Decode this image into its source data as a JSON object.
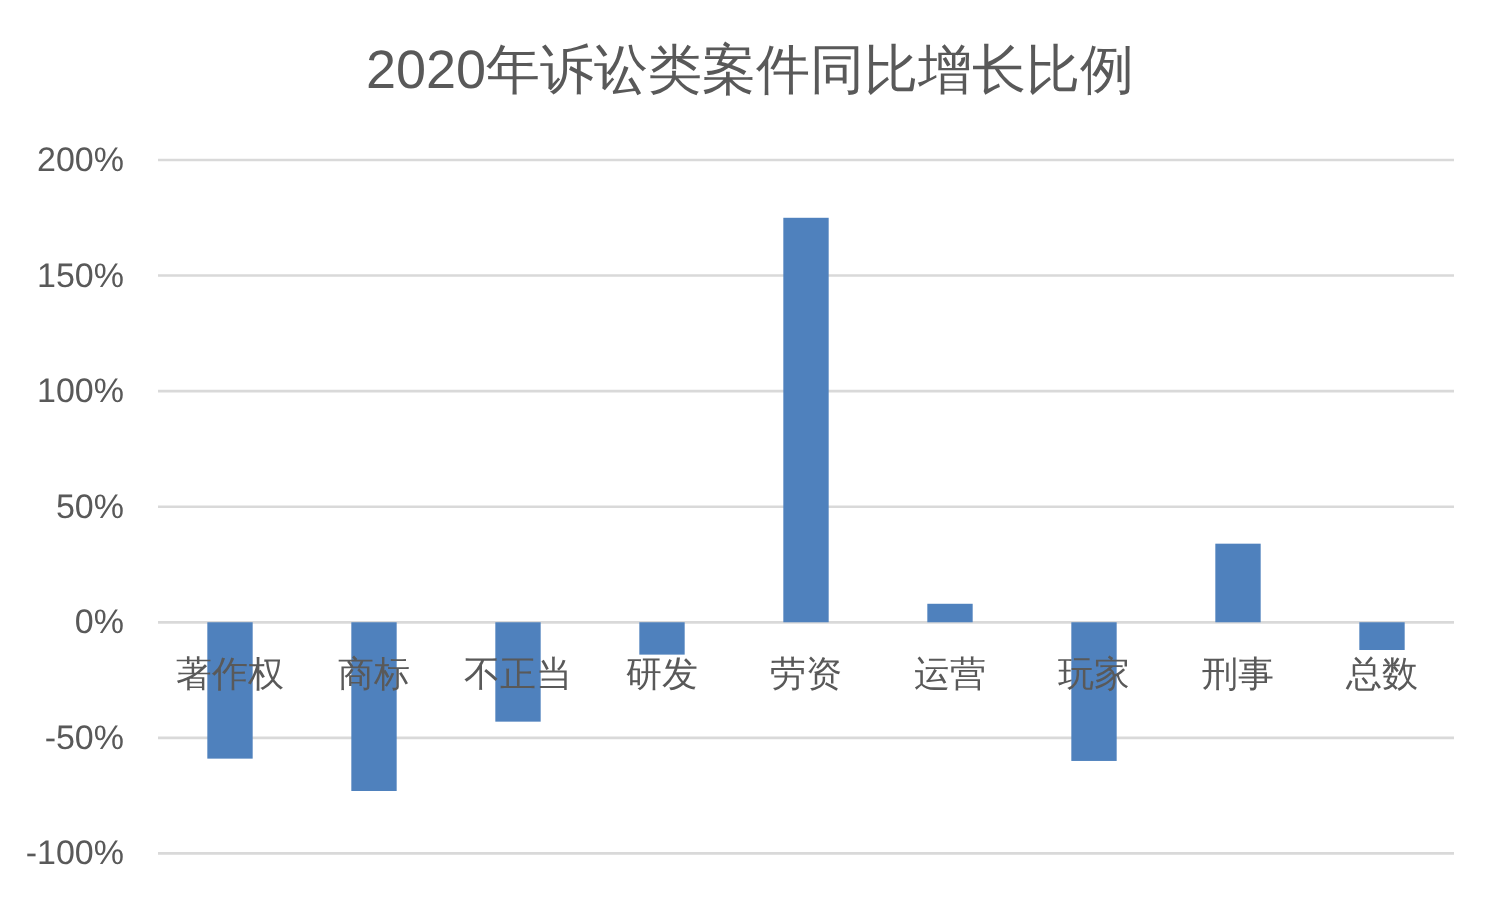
{
  "chart_data": {
    "type": "bar",
    "title": "2020年诉讼类案件同比增长比例",
    "categories": [
      "著作权",
      "商标",
      "不正当",
      "研发",
      "劳资",
      "运营",
      "玩家",
      "刑事",
      "总数"
    ],
    "values": [
      -59,
      -73,
      -43,
      -14,
      175,
      8,
      -60,
      34,
      -12
    ],
    "color": "#4f81bd",
    "ylim": [
      -100,
      200
    ],
    "yticks": [
      {
        "value": -100,
        "label": "-100%"
      },
      {
        "value": -50,
        "label": "-50%"
      },
      {
        "value": 0,
        "label": "0%"
      },
      {
        "value": 50,
        "label": "50%"
      },
      {
        "value": 100,
        "label": "100%"
      },
      {
        "value": 150,
        "label": "150%"
      },
      {
        "value": 200,
        "label": "200%"
      }
    ],
    "grid": "y"
  }
}
